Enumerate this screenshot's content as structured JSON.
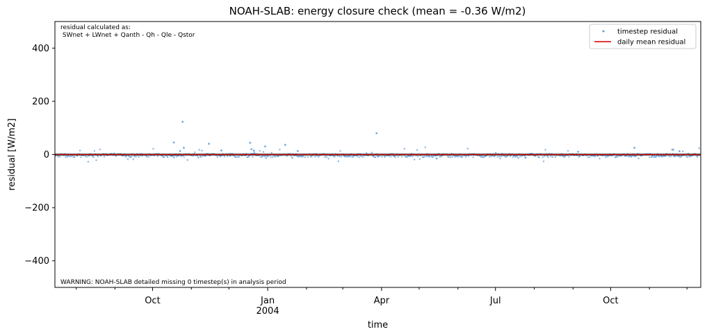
{
  "chart_data": {
    "type": "scatter",
    "title": "NOAH-SLAB: energy closure check (mean = -0.36 W/m2)",
    "xlabel": "time",
    "ylabel": "residual [W/m2]",
    "xlim": [
      "2003-07-15",
      "2004-12-12"
    ],
    "ylim": [
      -500,
      500
    ],
    "y_ticks": [
      400,
      200,
      0,
      -200,
      -400
    ],
    "y_tick_labels": [
      "400",
      "200",
      "0",
      "−200",
      "−400"
    ],
    "x_major_ticks": [
      {
        "date": "2003-10-01",
        "label": "Oct"
      },
      {
        "date": "2004-01-01",
        "label": "Jan",
        "sublabel": "2004"
      },
      {
        "date": "2004-04-01",
        "label": "Apr"
      },
      {
        "date": "2004-07-01",
        "label": "Jul"
      },
      {
        "date": "2004-10-01",
        "label": "Oct"
      }
    ],
    "x_minor_ticks": [
      "2003-08-01",
      "2003-09-01",
      "2003-11-01",
      "2003-12-01",
      "2004-02-01",
      "2004-03-01",
      "2004-05-01",
      "2004-06-01",
      "2004-08-01",
      "2004-09-01",
      "2004-11-01",
      "2004-12-01"
    ],
    "annotation_top": [
      "residual calculated as:",
      " SWnet + LWnet + Qanth - Qh - Qle - Qstor"
    ],
    "annotation_bottom": "WARNING: NOAH-SLAB detailed missing 0 timestep(s) in analysis period",
    "legend_placement": "top-right",
    "grid": false,
    "series": [
      {
        "name": "timestep residual",
        "style": "points",
        "color": "#5b9bd5",
        "outliers": [
          {
            "x": "2003-10-18",
            "y": 45
          },
          {
            "x": "2003-10-25",
            "y": 123
          },
          {
            "x": "2003-10-26",
            "y": 25
          },
          {
            "x": "2003-10-23",
            "y": 13
          },
          {
            "x": "2003-11-15",
            "y": 40
          },
          {
            "x": "2003-11-25",
            "y": 15
          },
          {
            "x": "2003-12-18",
            "y": 44
          },
          {
            "x": "2003-12-19",
            "y": 20
          },
          {
            "x": "2003-12-21",
            "y": 15
          },
          {
            "x": "2003-12-30",
            "y": 30
          },
          {
            "x": "2004-01-15",
            "y": 36
          },
          {
            "x": "2004-01-25",
            "y": 13
          },
          {
            "x": "2004-03-28",
            "y": 80
          },
          {
            "x": "2004-05-15",
            "y": -15
          },
          {
            "x": "2004-07-25",
            "y": -12
          },
          {
            "x": "2004-09-05",
            "y": 10
          },
          {
            "x": "2004-10-20",
            "y": 25
          },
          {
            "x": "2004-11-20",
            "y": 18
          },
          {
            "x": "2004-11-25",
            "y": 12
          }
        ]
      },
      {
        "name": "daily mean residual",
        "style": "line",
        "color": "#e41a1c",
        "constant_value": -0.36
      }
    ]
  }
}
